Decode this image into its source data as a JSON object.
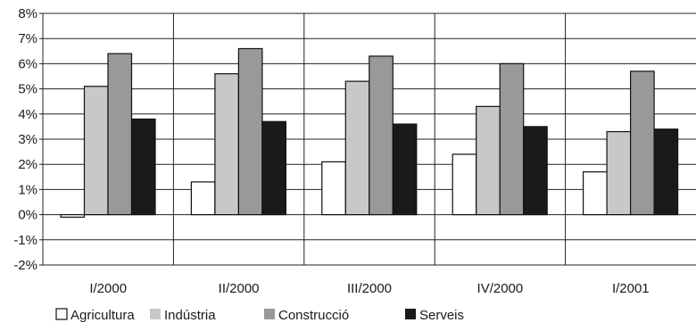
{
  "chart_data": {
    "type": "bar",
    "categories": [
      "I/2000",
      "II/2000",
      "III/2000",
      "IV/2000",
      "I/2001"
    ],
    "series": [
      {
        "name": "Agricultura",
        "color": "#ffffff",
        "values": [
          -0.1,
          1.3,
          2.1,
          2.4,
          1.7
        ]
      },
      {
        "name": "Indústria",
        "color": "#c8c8c8",
        "values": [
          5.1,
          5.6,
          5.3,
          4.3,
          3.3
        ]
      },
      {
        "name": "Construcció",
        "color": "#999999",
        "values": [
          6.4,
          6.6,
          6.3,
          6.0,
          5.7
        ]
      },
      {
        "name": "Serveis",
        "color": "#1a1a1a",
        "values": [
          3.8,
          3.7,
          3.6,
          3.5,
          3.4
        ]
      }
    ],
    "ylim": [
      -2,
      8
    ],
    "yticks": [
      "-2%",
      "-1%",
      "0%",
      "1%",
      "2%",
      "3%",
      "4%",
      "5%",
      "6%",
      "7%",
      "8%"
    ],
    "ytick_values": [
      -2,
      -1,
      0,
      1,
      2,
      3,
      4,
      5,
      6,
      7,
      8
    ],
    "grid": true,
    "legend_position": "bottom-left",
    "title": "",
    "xlabel": "",
    "ylabel": ""
  }
}
